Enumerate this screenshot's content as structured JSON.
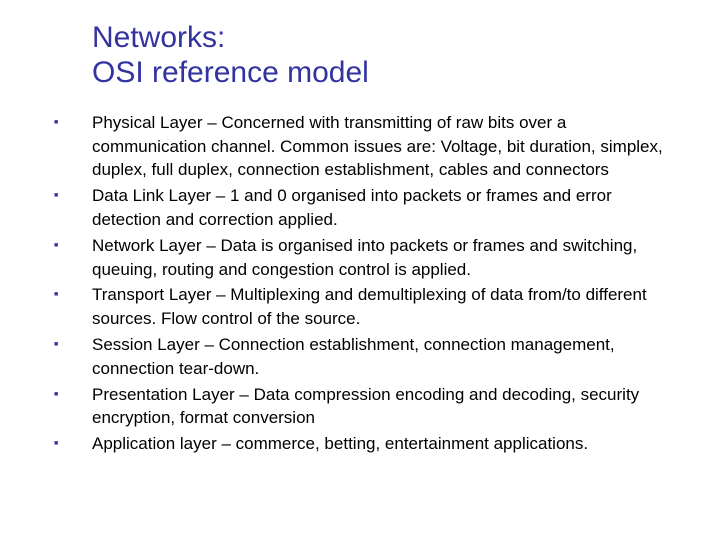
{
  "colors": {
    "title_color": "#3232a0",
    "bullet_color": "#3232a0",
    "text_color": "#000000",
    "background": "#ffffff"
  },
  "typography": {
    "title_fontsize": 30,
    "body_fontsize": 17,
    "bullet_fontsize": 7,
    "title_font": "Verdana",
    "body_font": "Tahoma"
  },
  "title": {
    "line1": "Networks:",
    "line2": "OSI reference model"
  },
  "bullets": [
    {
      "text": "Physical Layer – Concerned with transmitting of raw bits over a communication channel. Common issues are: Voltage, bit duration, simplex, duplex, full duplex, connection establishment, cables and connectors"
    },
    {
      "text": "Data Link Layer – 1 and 0 organised into packets or frames and error detection and correction applied."
    },
    {
      "text": "Network Layer – Data is organised into packets or frames and switching, queuing, routing and congestion control is applied."
    },
    {
      "text": "Transport Layer – Multiplexing and demultiplexing of data from/to different sources. Flow control of the source."
    },
    {
      "text": "Session Layer – Connection establishment, connection management, connection tear-down."
    },
    {
      "text": "Presentation Layer – Data compression encoding and decoding, security encryption, format conversion"
    },
    {
      "text": "Application layer – commerce, betting, entertainment applications."
    }
  ]
}
